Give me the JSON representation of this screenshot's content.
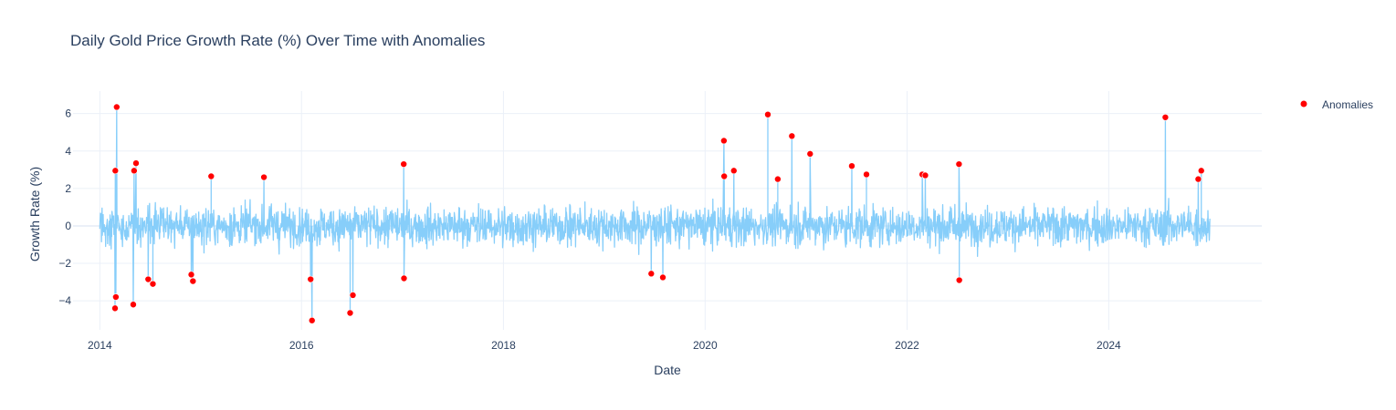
{
  "chart_data": {
    "type": "line",
    "title": "Daily Gold Price Growth Rate (%) Over Time with Anomalies",
    "xlabel": "Date",
    "ylabel": "Growth Rate (%)",
    "x_range": [
      "2013-09-26",
      "2025-07-08"
    ],
    "y_range": [
      -5.55,
      7.2
    ],
    "x_ticks": [
      "2014",
      "2016",
      "2018",
      "2020",
      "2022",
      "2024"
    ],
    "y_ticks": [
      -4,
      -2,
      0,
      2,
      4,
      6
    ],
    "grid": true,
    "legend": {
      "position": "top-right",
      "entries": [
        "Anomalies"
      ]
    },
    "series": [
      {
        "kind": "line",
        "color": "#87cefa",
        "x_start": "2014-01-01",
        "x_end": "2025-01-01",
        "typical_range": [
          -2.5,
          2.5
        ],
        "note_values": "dense daily series; visible peaks and troughs listed below",
        "peaks": [
          {
            "x": "2014-03-03",
            "y": 6.35
          },
          {
            "x": "2014-02-26",
            "y": 2.95
          },
          {
            "x": "2014-02-28",
            "y": -3.8
          },
          {
            "x": "2014-02-25",
            "y": -4.4
          },
          {
            "x": "2014-05-05",
            "y": 2.95
          },
          {
            "x": "2014-05-12",
            "y": 3.35
          },
          {
            "x": "2014-05-02",
            "y": -4.2
          },
          {
            "x": "2014-06-25",
            "y": -2.85
          },
          {
            "x": "2014-07-12",
            "y": -3.1
          },
          {
            "x": "2014-11-28",
            "y": -2.6
          },
          {
            "x": "2014-12-04",
            "y": -2.95
          },
          {
            "x": "2015-02-08",
            "y": 2.65
          },
          {
            "x": "2015-08-18",
            "y": 2.6
          },
          {
            "x": "2016-02-03",
            "y": -2.85
          },
          {
            "x": "2016-02-08",
            "y": -5.05
          },
          {
            "x": "2016-06-25",
            "y": -4.65
          },
          {
            "x": "2016-07-05",
            "y": -3.7
          },
          {
            "x": "2017-01-05",
            "y": 3.3
          },
          {
            "x": "2017-01-06",
            "y": -2.8
          },
          {
            "x": "2019-06-20",
            "y": -2.55
          },
          {
            "x": "2019-08-01",
            "y": -2.75
          },
          {
            "x": "2020-03-09",
            "y": 4.55
          },
          {
            "x": "2020-03-10",
            "y": 2.65
          },
          {
            "x": "2020-04-14",
            "y": 2.95
          },
          {
            "x": "2020-08-15",
            "y": 5.95
          },
          {
            "x": "2020-09-20",
            "y": 2.5
          },
          {
            "x": "2020-11-10",
            "y": 4.8
          },
          {
            "x": "2021-01-15",
            "y": 3.85
          },
          {
            "x": "2021-06-15",
            "y": 3.2
          },
          {
            "x": "2021-08-07",
            "y": 2.75
          },
          {
            "x": "2022-02-25",
            "y": 2.75
          },
          {
            "x": "2022-03-08",
            "y": 2.7
          },
          {
            "x": "2022-07-08",
            "y": 3.3
          },
          {
            "x": "2022-07-09",
            "y": -2.9
          },
          {
            "x": "2024-07-24",
            "y": 5.8
          },
          {
            "x": "2024-11-20",
            "y": 2.5
          },
          {
            "x": "2024-12-01",
            "y": 2.95
          }
        ]
      },
      {
        "kind": "scatter",
        "name": "Anomalies",
        "color": "#ff0000",
        "points": [
          {
            "x": "2014-02-25",
            "y": -4.4
          },
          {
            "x": "2014-02-26",
            "y": 2.95
          },
          {
            "x": "2014-02-28",
            "y": -3.8
          },
          {
            "x": "2014-03-03",
            "y": 6.35
          },
          {
            "x": "2014-05-02",
            "y": -4.2
          },
          {
            "x": "2014-05-05",
            "y": 2.95
          },
          {
            "x": "2014-05-12",
            "y": 3.35
          },
          {
            "x": "2014-06-25",
            "y": -2.85
          },
          {
            "x": "2014-07-12",
            "y": -3.1
          },
          {
            "x": "2014-11-28",
            "y": -2.6
          },
          {
            "x": "2014-12-04",
            "y": -2.95
          },
          {
            "x": "2015-02-08",
            "y": 2.65
          },
          {
            "x": "2015-08-18",
            "y": 2.6
          },
          {
            "x": "2016-02-03",
            "y": -2.85
          },
          {
            "x": "2016-02-08",
            "y": -5.05
          },
          {
            "x": "2016-06-25",
            "y": -4.65
          },
          {
            "x": "2016-07-05",
            "y": -3.7
          },
          {
            "x": "2017-01-05",
            "y": 3.3
          },
          {
            "x": "2017-01-06",
            "y": -2.8
          },
          {
            "x": "2019-06-20",
            "y": -2.55
          },
          {
            "x": "2019-08-01",
            "y": -2.75
          },
          {
            "x": "2020-03-09",
            "y": 4.55
          },
          {
            "x": "2020-03-10",
            "y": 2.65
          },
          {
            "x": "2020-04-14",
            "y": 2.95
          },
          {
            "x": "2020-08-15",
            "y": 5.95
          },
          {
            "x": "2020-09-20",
            "y": 2.5
          },
          {
            "x": "2020-11-10",
            "y": 4.8
          },
          {
            "x": "2021-01-15",
            "y": 3.85
          },
          {
            "x": "2021-06-15",
            "y": 3.2
          },
          {
            "x": "2021-08-07",
            "y": 2.75
          },
          {
            "x": "2022-02-25",
            "y": 2.75
          },
          {
            "x": "2022-03-08",
            "y": 2.7
          },
          {
            "x": "2022-07-08",
            "y": 3.3
          },
          {
            "x": "2022-07-09",
            "y": -2.9
          },
          {
            "x": "2024-07-24",
            "y": 5.8
          },
          {
            "x": "2024-11-20",
            "y": 2.5
          },
          {
            "x": "2024-12-01",
            "y": 2.95
          }
        ]
      }
    ]
  }
}
